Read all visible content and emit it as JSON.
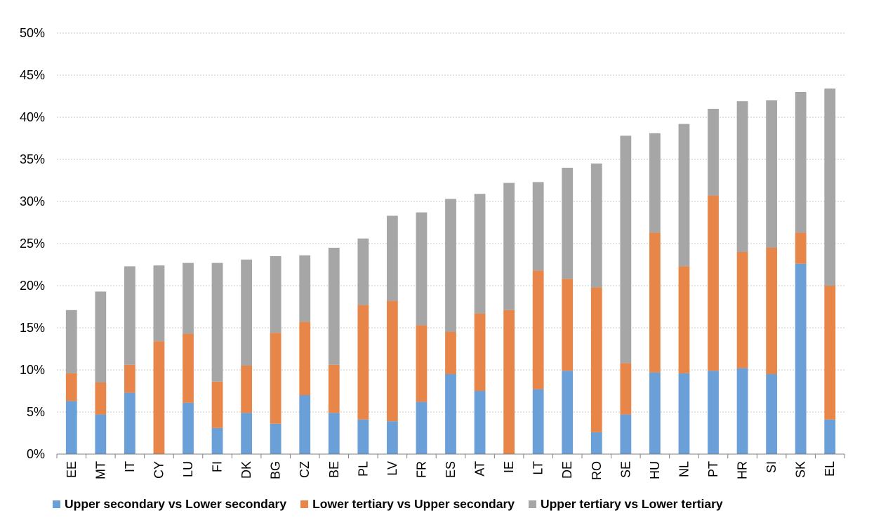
{
  "chart_data": {
    "type": "bar",
    "stacked": true,
    "categories": [
      "EE",
      "MT",
      "IT",
      "CY",
      "LU",
      "FI",
      "DK",
      "BG",
      "CZ",
      "BE",
      "PL",
      "LV",
      "FR",
      "ES",
      "AT",
      "IE",
      "LT",
      "DE",
      "RO",
      "SE",
      "HU",
      "NL",
      "PT",
      "HR",
      "SI",
      "SK",
      "EL"
    ],
    "series": [
      {
        "name": "Upper secondary vs Lower secondary",
        "color": "#6a9fd8",
        "values": [
          6.3,
          4.7,
          7.3,
          0,
          6.1,
          3.1,
          4.9,
          3.6,
          7.0,
          4.9,
          4.1,
          3.9,
          6.2,
          9.5,
          7.5,
          0,
          7.7,
          9.9,
          2.6,
          4.7,
          9.7,
          9.6,
          9.9,
          10.2,
          9.5,
          22.6,
          4.1
        ]
      },
      {
        "name": "Lower tertiary vs Upper secondary",
        "color": "#e8864a",
        "values": [
          3.3,
          3.8,
          3.3,
          13.4,
          8.2,
          5.5,
          5.6,
          10.8,
          8.7,
          5.7,
          13.6,
          14.3,
          9.1,
          5.0,
          9.2,
          17.1,
          14.1,
          10.9,
          17.2,
          6.1,
          16.6,
          12.7,
          20.8,
          13.8,
          15.0,
          3.7,
          15.9
        ]
      },
      {
        "name": "Upper tertiary vs Lower tertiary",
        "color": "#a6a6a6",
        "values": [
          7.5,
          10.8,
          11.7,
          9.0,
          8.4,
          14.1,
          12.6,
          9.1,
          7.9,
          13.9,
          7.9,
          10.1,
          13.4,
          15.8,
          14.2,
          15.1,
          10.5,
          13.2,
          14.7,
          27.0,
          11.8,
          16.9,
          10.3,
          17.9,
          17.5,
          16.7,
          23.4
        ]
      }
    ],
    "ylim": [
      0,
      50
    ],
    "yticks": [
      0,
      5,
      10,
      15,
      20,
      25,
      30,
      35,
      40,
      45,
      50
    ],
    "ytick_labels": [
      "0%",
      "5%",
      "10%",
      "15%",
      "20%",
      "25%",
      "30%",
      "35%",
      "40%",
      "45%",
      "50%"
    ],
    "grid": true,
    "legend_position": "bottom"
  },
  "legend": {
    "item0": "Upper secondary vs Lower secondary",
    "item1": "Lower tertiary vs Upper secondary",
    "item2": "Upper tertiary vs Lower tertiary"
  }
}
